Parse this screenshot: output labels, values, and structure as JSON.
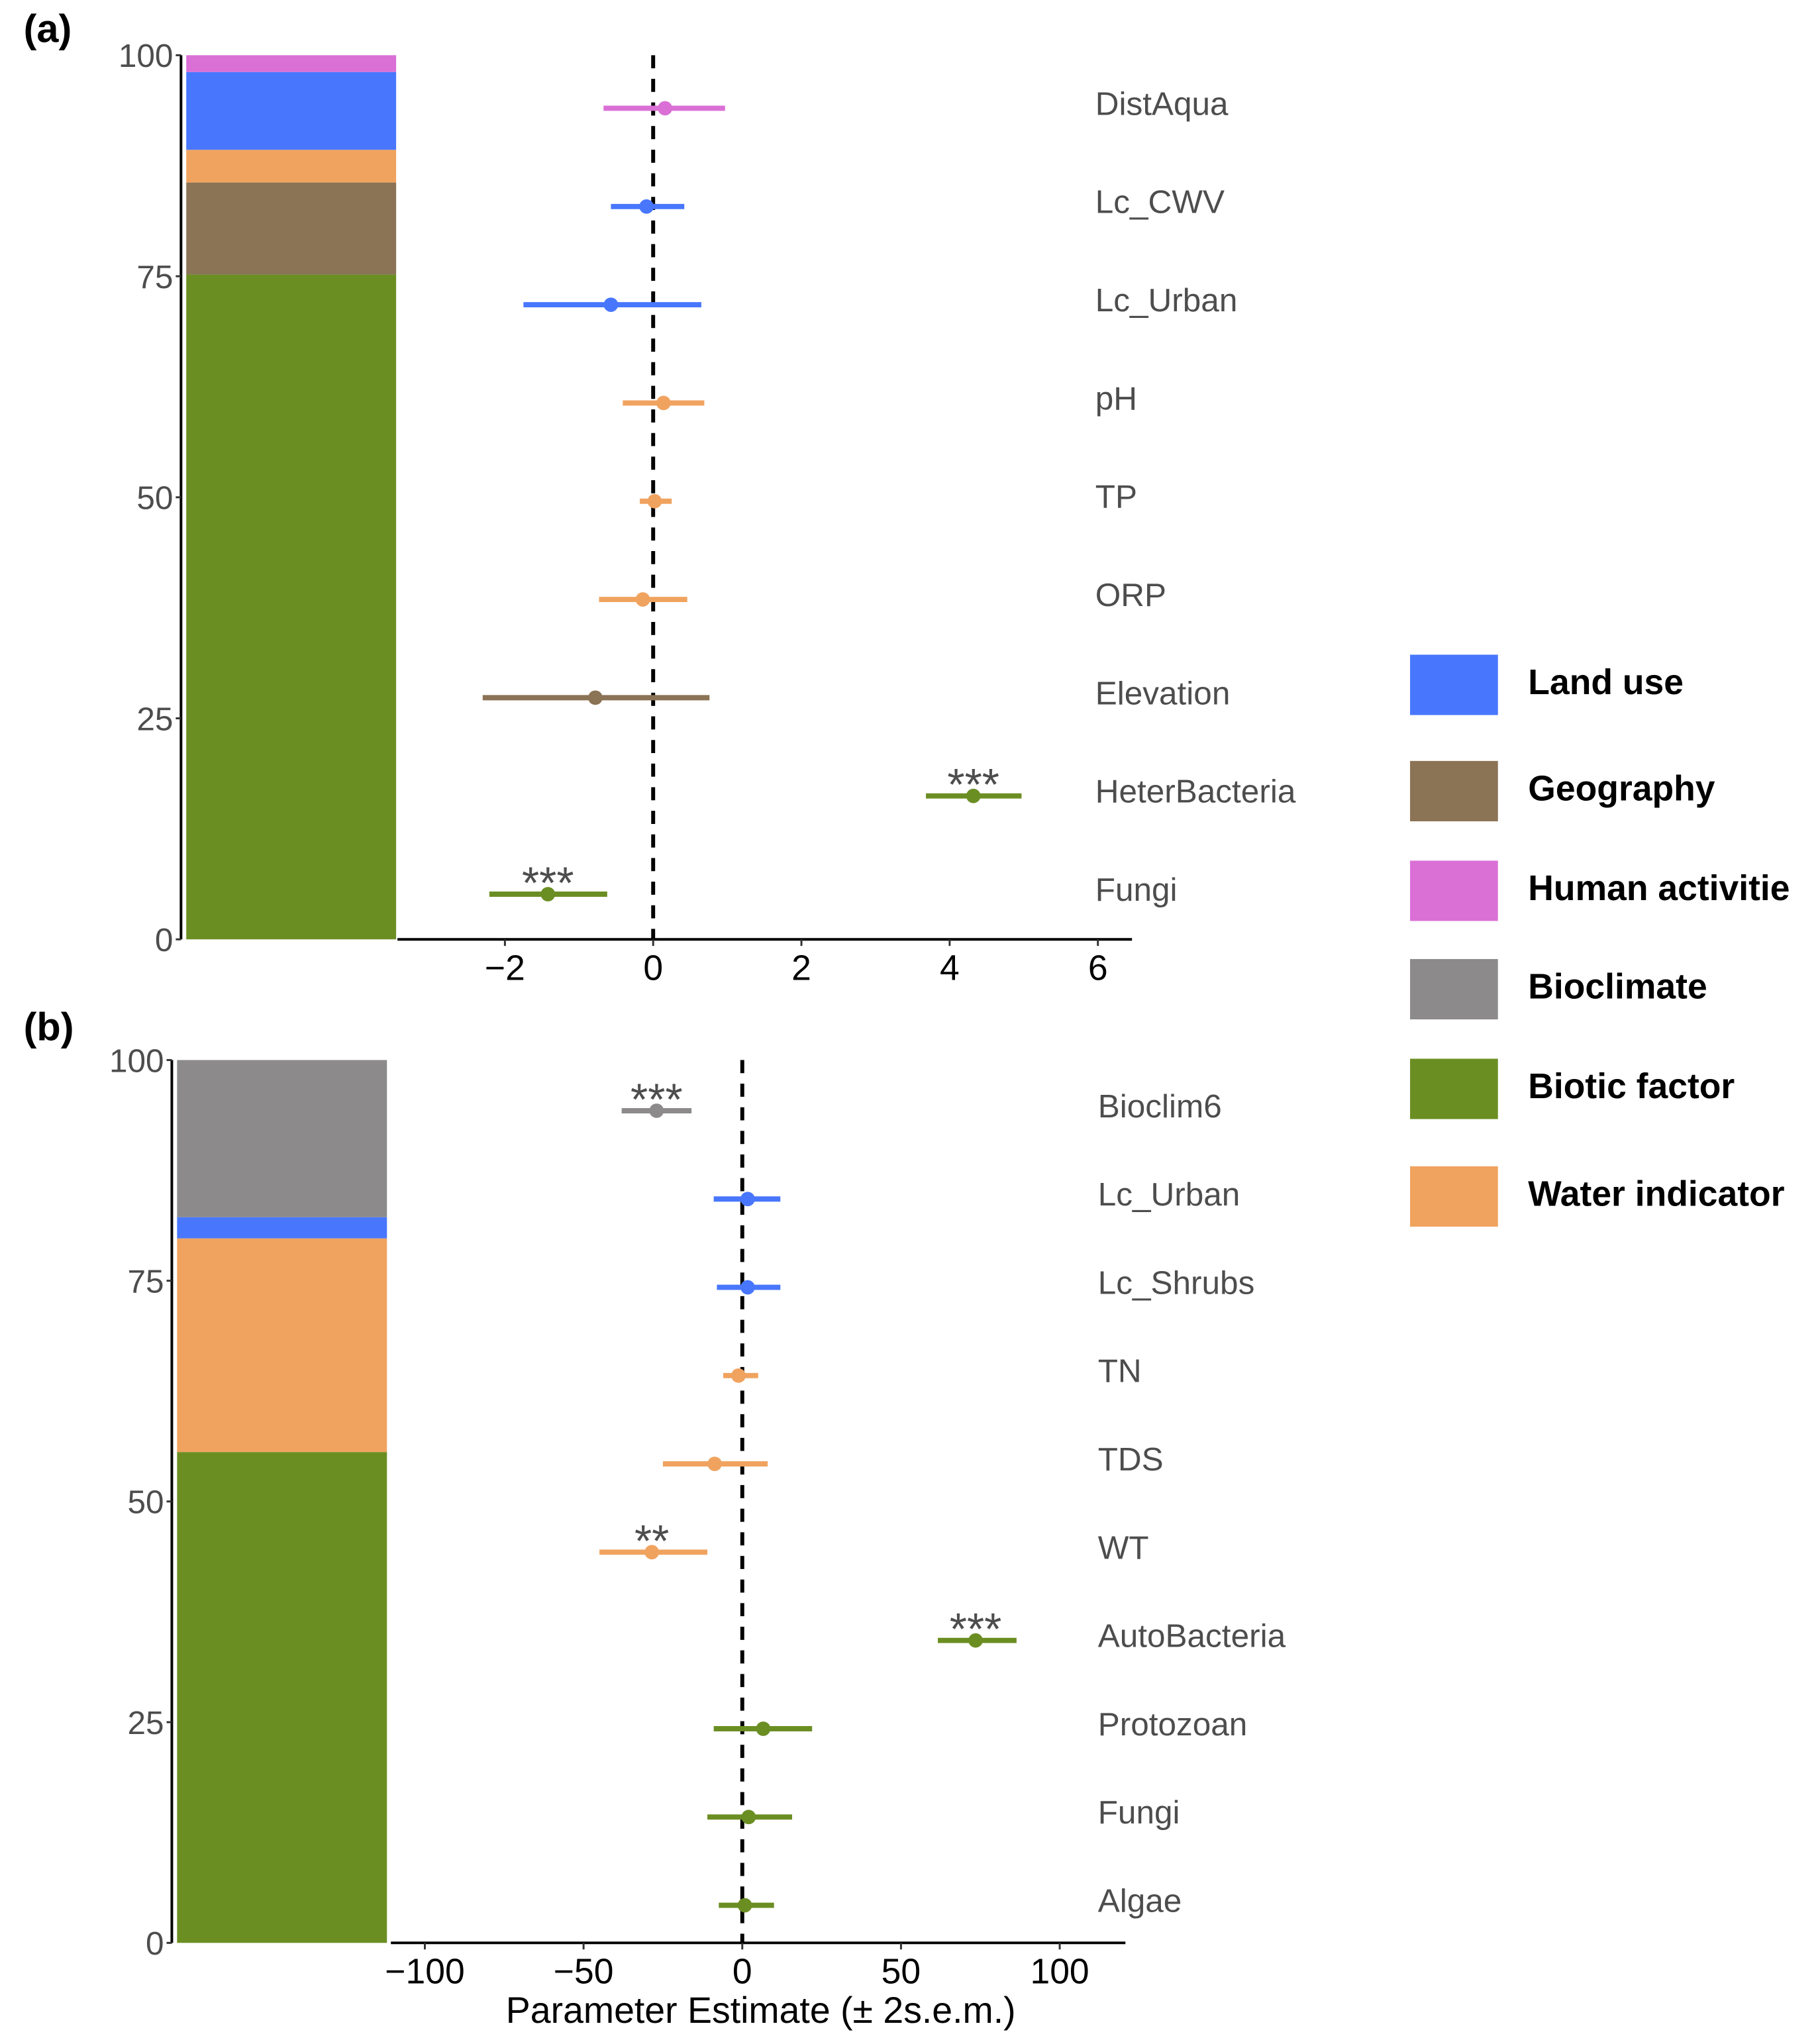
{
  "colors": {
    "Land use": "#4877fe",
    "Geography": "#8b7355",
    "Human activitie": "#da70d6",
    "Bioclimate": "#8c8a8b",
    "Biotic factor": "#6b8e23",
    "Water indicator": "#f0a35f"
  },
  "legend": [
    "Land use",
    "Geography",
    "Human activitie",
    "Bioclimate",
    "Biotic factor",
    "Water indicator"
  ],
  "chart_data": [
    {
      "type": "forest+stacked-bar",
      "panel_label": "(a)",
      "xlim": [
        -3.45,
        6.46
      ],
      "xticks": [
        -2,
        0,
        2,
        4,
        6
      ],
      "ylim": [
        0,
        100
      ],
      "yticks": [
        0,
        25,
        50,
        75,
        100
      ],
      "stack": [
        {
          "group": "Biotic factor",
          "from": 0,
          "to": 75.2
        },
        {
          "group": "Geography",
          "from": 75.2,
          "to": 85.6
        },
        {
          "group": "Water indicator",
          "from": 85.6,
          "to": 89.3
        },
        {
          "group": "Land use",
          "from": 89.3,
          "to": 98.1
        },
        {
          "group": "Human activitie",
          "from": 98.1,
          "to": 100
        }
      ],
      "estimates": [
        {
          "label": "DistAqua",
          "group": "Human activitie",
          "est": 0.16,
          "lo": -0.67,
          "hi": 0.97,
          "sig": ""
        },
        {
          "label": "Lc_CWV",
          "group": "Land use",
          "est": -0.09,
          "lo": -0.57,
          "hi": 0.42,
          "sig": ""
        },
        {
          "label": "Lc_Urban",
          "group": "Land use",
          "est": -0.57,
          "lo": -1.75,
          "hi": 0.65,
          "sig": ""
        },
        {
          "label": "pH",
          "group": "Water indicator",
          "est": 0.14,
          "lo": -0.41,
          "hi": 0.69,
          "sig": ""
        },
        {
          "label": "TP",
          "group": "Water indicator",
          "est": 0.02,
          "lo": -0.18,
          "hi": 0.25,
          "sig": ""
        },
        {
          "label": "ORP",
          "group": "Water indicator",
          "est": -0.14,
          "lo": -0.73,
          "hi": 0.46,
          "sig": ""
        },
        {
          "label": "Elevation",
          "group": "Geography",
          "est": -0.78,
          "lo": -2.3,
          "hi": 0.76,
          "sig": ""
        },
        {
          "label": "HeterBacteria",
          "group": "Biotic factor",
          "est": 4.32,
          "lo": 3.68,
          "hi": 4.97,
          "sig": "***"
        },
        {
          "label": "Fungi",
          "group": "Biotic factor",
          "est": -1.42,
          "lo": -2.21,
          "hi": -0.62,
          "sig": "***"
        }
      ]
    },
    {
      "type": "forest+stacked-bar",
      "panel_label": "(b)",
      "xlim": [
        -110.7,
        120.7
      ],
      "xticks": [
        -100,
        -50,
        0,
        50,
        100
      ],
      "xlabel": "Parameter Estimate (± 2s.e.m.)",
      "ylim": [
        0,
        100
      ],
      "yticks": [
        0,
        25,
        50,
        75,
        100
      ],
      "stack": [
        {
          "group": "Biotic factor",
          "from": 0,
          "to": 55.6
        },
        {
          "group": "Water indicator",
          "from": 55.6,
          "to": 79.8
        },
        {
          "group": "Land use",
          "from": 79.8,
          "to": 82.2
        },
        {
          "group": "Bioclimate",
          "from": 82.2,
          "to": 100
        }
      ],
      "estimates": [
        {
          "label": "Bioclim6",
          "group": "Bioclimate",
          "est": -27,
          "lo": -38,
          "hi": -16,
          "sig": "***"
        },
        {
          "label": "Lc_Urban",
          "group": "Land use",
          "est": 1.7,
          "lo": -9,
          "hi": 12,
          "sig": ""
        },
        {
          "label": "Lc_Shrubs",
          "group": "Land use",
          "est": 1.7,
          "lo": -8,
          "hi": 12,
          "sig": ""
        },
        {
          "label": "TN",
          "group": "Water indicator",
          "est": -1.2,
          "lo": -6,
          "hi": 5,
          "sig": ""
        },
        {
          "label": "TDS",
          "group": "Water indicator",
          "est": -8.7,
          "lo": -25,
          "hi": 8,
          "sig": ""
        },
        {
          "label": "WT",
          "group": "Water indicator",
          "est": -28.5,
          "lo": -45,
          "hi": -11,
          "sig": "**"
        },
        {
          "label": "AutoBacteria",
          "group": "Biotic factor",
          "est": 73.5,
          "lo": 61.6,
          "hi": 86.4,
          "sig": "***"
        },
        {
          "label": "Protozoan",
          "group": "Biotic factor",
          "est": 6.6,
          "lo": -9,
          "hi": 22,
          "sig": ""
        },
        {
          "label": "Fungi",
          "group": "Biotic factor",
          "est": 2,
          "lo": -11,
          "hi": 15.7,
          "sig": ""
        },
        {
          "label": "Algae",
          "group": "Biotic factor",
          "est": 0.8,
          "lo": -7.4,
          "hi": 10,
          "sig": ""
        }
      ]
    }
  ]
}
